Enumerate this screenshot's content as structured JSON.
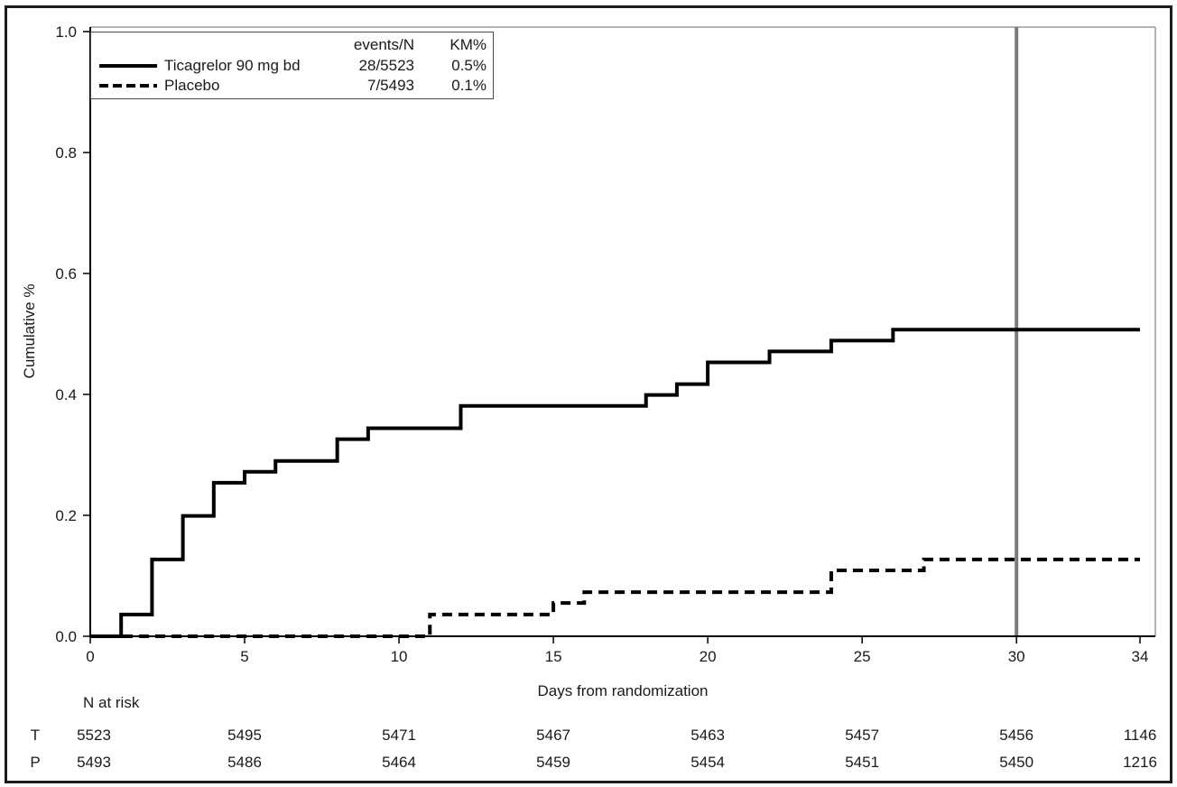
{
  "figure": {
    "background": "#ffffff",
    "outer_border_color": "#1c1c1c",
    "frame_color": "#9a9a9a",
    "axis_color": "#000000",
    "reference_line_color": "#7b7b7b",
    "curve_color": "#000000"
  },
  "legend": {
    "col_events": "events/N",
    "col_km": "KM%",
    "series": [
      {
        "label": "Ticagrelor 90 mg bd",
        "events_n": "28/5523",
        "km": "0.5%",
        "line": "solid"
      },
      {
        "label": "Placebo",
        "events_n": "7/5493",
        "km": "0.1%",
        "line": "dashed"
      }
    ]
  },
  "chart_data": {
    "type": "line",
    "subtype": "kaplan-meier-step",
    "title": "",
    "xlabel": "Days from randomization",
    "ylabel": "Cumulative %",
    "xlim": [
      0,
      34
    ],
    "ylim": [
      0.0,
      1.0
    ],
    "xticks": [
      0,
      5,
      10,
      15,
      20,
      25,
      30,
      34
    ],
    "xtick_labels": [
      "0",
      "5",
      "10",
      "15",
      "20",
      "25",
      "30",
      "34"
    ],
    "yticks": [
      0.0,
      0.2,
      0.4,
      0.6,
      0.8,
      1.0
    ],
    "ytick_labels": [
      "0.0",
      "0.2",
      "0.4",
      "0.6",
      "0.8",
      "1.0"
    ],
    "grid": false,
    "legend_position": "top-left",
    "reference_line_x": 30,
    "series": [
      {
        "name": "Ticagrelor 90 mg bd",
        "style": "solid",
        "color": "#000000",
        "events": 28,
        "n": 5523,
        "km_pct_at_30d": 0.5,
        "steps": [
          [
            0,
            0.0
          ],
          [
            1,
            0.036
          ],
          [
            2,
            0.127
          ],
          [
            3,
            0.199
          ],
          [
            4,
            0.254
          ],
          [
            5,
            0.272
          ],
          [
            6,
            0.29
          ],
          [
            8,
            0.326
          ],
          [
            9,
            0.344
          ],
          [
            12,
            0.381
          ],
          [
            18,
            0.399
          ],
          [
            19,
            0.417
          ],
          [
            20,
            0.453
          ],
          [
            22,
            0.471
          ],
          [
            24,
            0.489
          ],
          [
            26,
            0.507
          ],
          [
            34,
            0.507
          ]
        ]
      },
      {
        "name": "Placebo",
        "style": "dashed",
        "color": "#000000",
        "events": 7,
        "n": 5493,
        "km_pct_at_30d": 0.1,
        "steps": [
          [
            0,
            0.0
          ],
          [
            11,
            0.036
          ],
          [
            15,
            0.055
          ],
          [
            16,
            0.073
          ],
          [
            24,
            0.109
          ],
          [
            27,
            0.127
          ],
          [
            34,
            0.127
          ]
        ]
      }
    ],
    "risk_table": {
      "title": "N at risk",
      "times": [
        0,
        5,
        10,
        15,
        20,
        25,
        30,
        34
      ],
      "rows": [
        {
          "label": "T",
          "counts": [
            5523,
            5495,
            5471,
            5467,
            5463,
            5457,
            5456,
            1146
          ]
        },
        {
          "label": "P",
          "counts": [
            5493,
            5486,
            5464,
            5459,
            5454,
            5451,
            5450,
            1216
          ]
        }
      ]
    }
  }
}
